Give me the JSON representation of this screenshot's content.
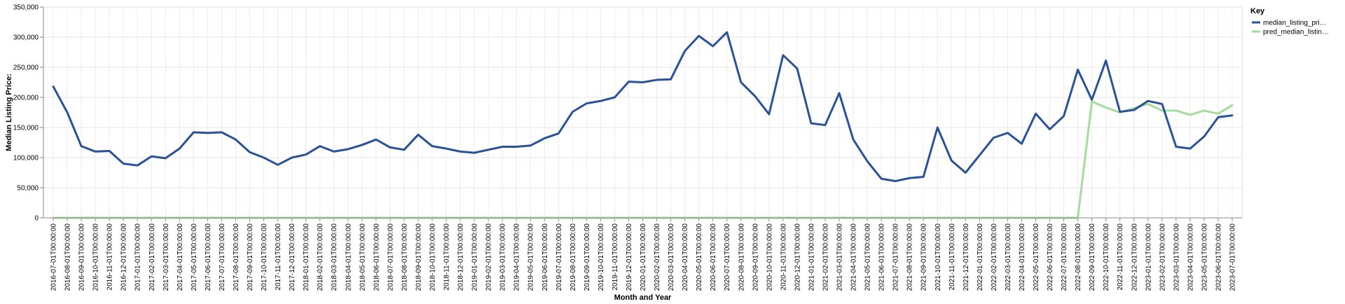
{
  "chart_data": {
    "type": "line",
    "xlabel": "Month and Year",
    "ylabel": "Median Listing Price:",
    "ylim": [
      0,
      350000
    ],
    "y_ticks": [
      "0",
      "50,000",
      "100,000",
      "150,000",
      "200,000",
      "250,000",
      "300,000",
      "350,000"
    ],
    "grid": true,
    "legend": {
      "title": "Key",
      "placement": "top-right",
      "entries": [
        "median_listing_pri…",
        "pred_median_listin…"
      ]
    },
    "x": [
      "2016-07-01T00:00:00",
      "2016-08-01T00:00:00",
      "2016-09-01T00:00:00",
      "2016-10-01T00:00:00",
      "2016-11-01T00:00:00",
      "2016-12-01T00:00:00",
      "2017-01-01T00:00:00",
      "2017-02-01T00:00:00",
      "2017-03-01T00:00:00",
      "2017-04-01T00:00:00",
      "2017-05-01T00:00:00",
      "2017-06-01T00:00:00",
      "2017-07-01T00:00:00",
      "2017-08-01T00:00:00",
      "2017-09-01T00:00:00",
      "2017-10-01T00:00:00",
      "2017-11-01T00:00:00",
      "2017-12-01T00:00:00",
      "2018-01-01T00:00:00",
      "2018-02-01T00:00:00",
      "2018-03-01T00:00:00",
      "2018-04-01T00:00:00",
      "2018-05-01T00:00:00",
      "2018-06-01T00:00:00",
      "2018-07-01T00:00:00",
      "2018-08-01T00:00:00",
      "2018-09-01T00:00:00",
      "2018-10-01T00:00:00",
      "2018-11-01T00:00:00",
      "2018-12-01T00:00:00",
      "2019-01-01T00:00:00",
      "2019-02-01T00:00:00",
      "2019-03-01T00:00:00",
      "2019-04-01T00:00:00",
      "2019-05-01T00:00:00",
      "2019-06-01T00:00:00",
      "2019-07-01T00:00:00",
      "2019-08-01T00:00:00",
      "2019-09-01T00:00:00",
      "2019-10-01T00:00:00",
      "2019-11-01T00:00:00",
      "2019-12-01T00:00:00",
      "2020-01-01T00:00:00",
      "2020-02-01T00:00:00",
      "2020-03-01T00:00:00",
      "2020-04-01T00:00:00",
      "2020-05-01T00:00:00",
      "2020-06-01T00:00:00",
      "2020-07-01T00:00:00",
      "2020-08-01T00:00:00",
      "2020-09-01T00:00:00",
      "2020-10-01T00:00:00",
      "2020-11-01T00:00:00",
      "2020-12-01T00:00:00",
      "2021-01-01T00:00:00",
      "2021-02-01T00:00:00",
      "2021-03-01T00:00:00",
      "2021-04-01T00:00:00",
      "2021-05-01T00:00:00",
      "2021-06-01T00:00:00",
      "2021-07-01T00:00:00",
      "2021-08-01T00:00:00",
      "2021-09-01T00:00:00",
      "2021-10-01T00:00:00",
      "2021-11-01T00:00:00",
      "2021-12-01T00:00:00",
      "2022-01-01T00:00:00",
      "2022-02-01T00:00:00",
      "2022-03-01T00:00:00",
      "2022-04-01T00:00:00",
      "2022-05-01T00:00:00",
      "2022-06-01T00:00:00",
      "2022-07-01T00:00:00",
      "2022-08-01T00:00:00",
      "2022-09-01T00:00:00",
      "2022-10-01T00:00:00",
      "2022-11-01T00:00:00",
      "2022-12-01T00:00:00",
      "2023-01-01T00:00:00",
      "2023-02-01T00:00:00",
      "2023-03-01T00:00:00",
      "2023-04-01T00:00:00",
      "2023-05-01T00:00:00",
      "2023-06-01T00:00:00",
      "2023-07-01T00:00:00"
    ],
    "series": [
      {
        "name": "median_listing_pri…",
        "color": "#2a5298",
        "values": [
          218000,
          175000,
          119000,
          110000,
          111000,
          90000,
          87000,
          102000,
          99000,
          115000,
          142000,
          141000,
          142000,
          130000,
          109000,
          100000,
          88000,
          100000,
          105000,
          119000,
          110000,
          114000,
          121000,
          130000,
          117000,
          113000,
          138000,
          119000,
          115000,
          110000,
          108000,
          113000,
          118000,
          118000,
          120000,
          132000,
          140000,
          176000,
          190000,
          194000,
          200000,
          226000,
          225000,
          229000,
          230000,
          277000,
          302000,
          285000,
          308000,
          225000,
          202000,
          172000,
          270000,
          248000,
          157000,
          154000,
          207000,
          130000,
          94000,
          65000,
          61000,
          66000,
          68000,
          150000,
          95000,
          75000,
          104000,
          133000,
          141000,
          123000,
          173000,
          147000,
          169000,
          246000,
          196000,
          261000,
          176000,
          179000,
          194000,
          189000,
          118000,
          115000,
          135000,
          167000,
          170000
        ]
      },
      {
        "name": "pred_median_listin…",
        "color": "#a3dd9c",
        "values": [
          0,
          0,
          0,
          0,
          0,
          0,
          0,
          0,
          0,
          0,
          0,
          0,
          0,
          0,
          0,
          0,
          0,
          0,
          0,
          0,
          0,
          0,
          0,
          0,
          0,
          0,
          0,
          0,
          0,
          0,
          0,
          0,
          0,
          0,
          0,
          0,
          0,
          0,
          0,
          0,
          0,
          0,
          0,
          0,
          0,
          0,
          0,
          0,
          0,
          0,
          0,
          0,
          0,
          0,
          0,
          0,
          0,
          0,
          0,
          0,
          0,
          0,
          0,
          0,
          0,
          0,
          0,
          0,
          0,
          0,
          0,
          0,
          0,
          0,
          193000,
          183000,
          175000,
          182000,
          189000,
          178000,
          178000,
          171000,
          178000,
          173000,
          187000
        ]
      }
    ]
  }
}
